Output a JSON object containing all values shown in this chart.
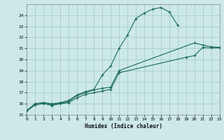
{
  "xlabel": "Humidex (Indice chaleur)",
  "bg_color": "#cce8e8",
  "grid_color": "#aacccc",
  "line_color": "#1a6b5a",
  "xlim": [
    0,
    23
  ],
  "ylim": [
    15,
    25
  ],
  "xticks": [
    0,
    1,
    2,
    3,
    4,
    5,
    6,
    7,
    8,
    9,
    10,
    11,
    12,
    13,
    14,
    15,
    16,
    17,
    18,
    19,
    20,
    21,
    22,
    23
  ],
  "yticks": [
    15,
    16,
    17,
    18,
    19,
    20,
    21,
    22,
    23,
    24
  ],
  "series1_x": [
    0,
    1,
    2,
    3,
    4,
    5,
    6,
    7,
    8,
    9,
    10,
    11,
    12,
    13,
    14,
    15,
    16,
    17,
    18
  ],
  "series1_y": [
    15.4,
    16.0,
    16.1,
    16.0,
    16.1,
    16.3,
    16.8,
    17.1,
    17.3,
    18.6,
    19.4,
    21.0,
    22.2,
    23.7,
    24.2,
    24.55,
    24.7,
    24.3,
    23.1
  ],
  "series2_x": [
    0,
    1,
    2,
    3,
    4,
    5,
    6,
    7,
    8,
    9,
    10,
    11,
    20,
    21,
    22,
    23
  ],
  "series2_y": [
    15.4,
    16.0,
    16.1,
    15.9,
    16.05,
    16.2,
    16.75,
    17.0,
    17.25,
    17.4,
    17.5,
    19.0,
    21.5,
    21.3,
    21.15,
    21.1
  ],
  "series3_x": [
    0,
    1,
    2,
    3,
    4,
    5,
    6,
    7,
    8,
    9,
    10,
    11,
    19,
    20,
    21,
    22,
    23
  ],
  "series3_y": [
    15.35,
    15.9,
    16.0,
    15.85,
    16.0,
    16.1,
    16.55,
    16.85,
    17.0,
    17.15,
    17.3,
    18.8,
    20.2,
    20.35,
    21.1,
    21.05,
    21.05
  ]
}
